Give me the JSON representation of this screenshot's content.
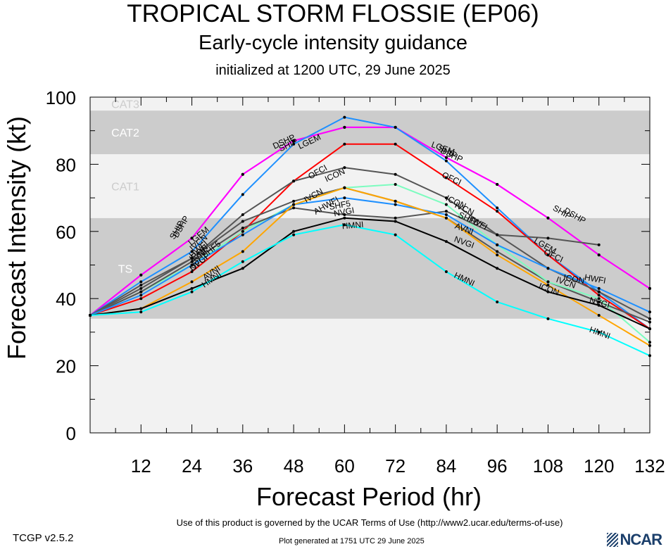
{
  "header": {
    "title": "TROPICAL STORM FLOSSIE (EP06)",
    "subtitle": "Early-cycle intensity guidance",
    "init": "initialized at 1200 UTC, 29 June 2025"
  },
  "footer": {
    "version": "TCGP v2.5.2",
    "terms": "Use of this product is governed by the UCAR Terms of Use (http://www2.ucar.edu/terms-of-use)",
    "generated": "Plot generated at 1751 UTC   29 June 2025",
    "logo": "NCAR"
  },
  "chart_data": {
    "type": "line",
    "title": "TROPICAL STORM FLOSSIE (EP06)",
    "xlabel": "Forecast Period (hr)",
    "ylabel": "Forecast Intensity (kt)",
    "xlim": [
      0,
      132
    ],
    "ylim": [
      0,
      100
    ],
    "xticks": [
      12,
      24,
      36,
      48,
      60,
      72,
      84,
      96,
      108,
      120,
      132
    ],
    "yticks": [
      0,
      20,
      40,
      60,
      80,
      100
    ],
    "bands": [
      {
        "label": "TS",
        "from": 34,
        "to": 64,
        "fill": "#cccccc"
      },
      {
        "label": "CAT1",
        "from": 64,
        "to": 83,
        "fill": "#f2f2f2"
      },
      {
        "label": "CAT2",
        "from": 83,
        "to": 96,
        "fill": "#cccccc"
      },
      {
        "label": "CAT3",
        "from": 96,
        "to": 100,
        "fill": "#f2f2f2"
      }
    ],
    "series": [
      {
        "name": "DSHP",
        "color": "#ff00ff",
        "x": [
          0,
          12,
          24,
          36,
          48,
          60,
          72,
          84,
          96,
          108,
          120,
          132
        ],
        "y": [
          35,
          47,
          58,
          77,
          87,
          91,
          91,
          82,
          74,
          64,
          53,
          43
        ]
      },
      {
        "name": "SHIP",
        "color": "#ff00ff",
        "x": [
          0,
          12,
          24,
          36,
          48,
          60,
          72,
          84,
          96,
          108,
          120,
          132
        ],
        "y": [
          35,
          47,
          58,
          77,
          87,
          91,
          91,
          82,
          74,
          64,
          53,
          43
        ]
      },
      {
        "name": "LGEM",
        "color": "#1e90ff",
        "x": [
          0,
          12,
          24,
          36,
          48,
          60,
          72,
          84,
          96,
          108,
          120,
          132
        ],
        "y": [
          35,
          45,
          54,
          71,
          86,
          94,
          91,
          81,
          67,
          53,
          42,
          31
        ]
      },
      {
        "name": "OFCI",
        "color": "#ff0000",
        "x": [
          0,
          12,
          24,
          36,
          48,
          60,
          72,
          84,
          96,
          108,
          120,
          132
        ],
        "y": [
          35,
          40,
          48,
          60,
          75,
          86,
          86,
          76,
          66,
          53,
          41,
          31
        ]
      },
      {
        "name": "ICON",
        "color": "#555555",
        "x": [
          0,
          12,
          24,
          36,
          48,
          60,
          72,
          84,
          96,
          108,
          120,
          132
        ],
        "y": [
          35,
          43,
          52,
          65,
          75,
          79,
          77,
          70,
          59,
          49,
          42,
          34
        ]
      },
      {
        "name": "IVCN",
        "color": "#555555",
        "x": [
          0,
          12,
          24,
          36,
          48,
          60,
          72,
          84,
          96,
          108,
          120,
          132
        ],
        "y": [
          35,
          44,
          52,
          63,
          69,
          73,
          69,
          64,
          54,
          45,
          39,
          33
        ]
      },
      {
        "name": "HWFI",
        "color": "#7cfcbf",
        "x": [
          0,
          12,
          24,
          36,
          48,
          60,
          72,
          84,
          96,
          108,
          120,
          132
        ],
        "y": [
          35,
          42,
          50,
          60,
          68,
          73,
          74,
          68,
          56,
          45,
          40,
          27
        ]
      },
      {
        "name": "SHF5",
        "color": "#555555",
        "x": [
          0,
          12,
          24,
          36,
          48,
          60,
          72,
          84,
          96,
          108,
          120,
          132
        ],
        "y": [
          35,
          42,
          51,
          61,
          67,
          65,
          64,
          66,
          59,
          58,
          56,
          null
        ]
      },
      {
        "name": "AHWFI",
        "color": "#1e90ff",
        "x": [
          0,
          12,
          24,
          36,
          48,
          60,
          72,
          84,
          96,
          108,
          120,
          132
        ],
        "y": [
          35,
          41,
          50,
          59,
          68,
          70,
          68,
          65,
          56,
          49,
          43,
          36
        ]
      },
      {
        "name": "AVNI",
        "color": "#ffa500",
        "x": [
          0,
          12,
          24,
          36,
          48,
          60,
          72,
          84,
          96,
          108,
          120,
          132
        ],
        "y": [
          35,
          37,
          45,
          54,
          68,
          73,
          69,
          64,
          53,
          44,
          35,
          26
        ]
      },
      {
        "name": "NVGI",
        "color": "#000000",
        "x": [
          0,
          12,
          24,
          36,
          48,
          60,
          72,
          84,
          96,
          108,
          120,
          132
        ],
        "y": [
          35,
          37,
          43,
          49,
          60,
          64,
          63,
          57,
          49,
          42,
          38,
          31
        ]
      },
      {
        "name": "HMNI",
        "color": "#00ffff",
        "x": [
          0,
          12,
          24,
          36,
          48,
          60,
          72,
          84,
          96,
          108,
          120,
          132
        ],
        "y": [
          35,
          36,
          42,
          51,
          59,
          62,
          59,
          48,
          39,
          34,
          30,
          23
        ]
      }
    ],
    "labels": [
      {
        "series": "DSHP",
        "x": 22,
        "y": 61,
        "rot": -60
      },
      {
        "series": "SHIP",
        "x": 21,
        "y": 60,
        "rot": -60
      },
      {
        "series": "DSHP",
        "x": 46,
        "y": 86,
        "rot": -25
      },
      {
        "series": "SHIP",
        "x": 47,
        "y": 85,
        "rot": -25
      },
      {
        "series": "DSHP",
        "x": 85,
        "y": 82,
        "rot": 25
      },
      {
        "series": "SHIP",
        "x": 84,
        "y": 83,
        "rot": 25
      },
      {
        "series": "DSHP",
        "x": 114,
        "y": 64,
        "rot": 30
      },
      {
        "series": "SHIP",
        "x": 111,
        "y": 65,
        "rot": 30
      },
      {
        "series": "LGEM",
        "x": 26,
        "y": 58,
        "rot": -40
      },
      {
        "series": "LGEM",
        "x": 52,
        "y": 86,
        "rot": -25
      },
      {
        "series": "LGEM",
        "x": 83,
        "y": 84,
        "rot": 20
      },
      {
        "series": "LGEM",
        "x": 107,
        "y": 55,
        "rot": 30
      },
      {
        "series": "OFCI",
        "x": 26,
        "y": 50,
        "rot": -40
      },
      {
        "series": "OFCI",
        "x": 54,
        "y": 77,
        "rot": -30
      },
      {
        "series": "OFCI",
        "x": 85,
        "y": 75,
        "rot": 25
      },
      {
        "series": "OFCI",
        "x": 109,
        "y": 52,
        "rot": 25
      },
      {
        "series": "ICON",
        "x": 26,
        "y": 53,
        "rot": -40
      },
      {
        "series": "ICON",
        "x": 58,
        "y": 76,
        "rot": -25
      },
      {
        "series": "ICON",
        "x": 86,
        "y": 68,
        "rot": 25
      },
      {
        "series": "ICON",
        "x": 114,
        "y": 45,
        "rot": 10
      },
      {
        "series": "ICON",
        "x": 108,
        "y": 42,
        "rot": 20
      },
      {
        "series": "IVCN",
        "x": 26,
        "y": 56,
        "rot": -40
      },
      {
        "series": "IVCN",
        "x": 53,
        "y": 70,
        "rot": -30
      },
      {
        "series": "IVCN",
        "x": 88,
        "y": 66,
        "rot": 25
      },
      {
        "series": "IVCN",
        "x": 112,
        "y": 44,
        "rot": 20
      },
      {
        "series": "HWFI",
        "x": 26,
        "y": 54,
        "rot": -40
      },
      {
        "series": "HWFI",
        "x": 91,
        "y": 62,
        "rot": 30
      },
      {
        "series": "HWFI",
        "x": 119,
        "y": 45,
        "rot": 10
      },
      {
        "series": "SHF5",
        "x": 29,
        "y": 54,
        "rot": -40
      },
      {
        "series": "SHF5",
        "x": 59,
        "y": 67,
        "rot": -10
      },
      {
        "series": "SHF5",
        "x": 89,
        "y": 63,
        "rot": 25
      },
      {
        "series": "AHWFI",
        "x": 56,
        "y": 67,
        "rot": -30
      },
      {
        "series": "AVNI",
        "x": 26,
        "y": 52,
        "rot": -40
      },
      {
        "series": "AVNI",
        "x": 29,
        "y": 47,
        "rot": -35
      },
      {
        "series": "AVNI",
        "x": 88,
        "y": 60,
        "rot": 20
      },
      {
        "series": "NVGI",
        "x": 26,
        "y": 50,
        "rot": -40
      },
      {
        "series": "NVGI",
        "x": 60,
        "y": 65,
        "rot": -10
      },
      {
        "series": "NVGI",
        "x": 88,
        "y": 56,
        "rot": 20
      },
      {
        "series": "NVGI",
        "x": 120,
        "y": 38,
        "rot": 15
      },
      {
        "series": "HMNI",
        "x": 29,
        "y": 45,
        "rot": -35
      },
      {
        "series": "HMNI",
        "x": 62,
        "y": 61,
        "rot": -5
      },
      {
        "series": "HMNI",
        "x": 88,
        "y": 45,
        "rot": 25
      },
      {
        "series": "HMNI",
        "x": 120,
        "y": 29,
        "rot": 20
      }
    ]
  }
}
